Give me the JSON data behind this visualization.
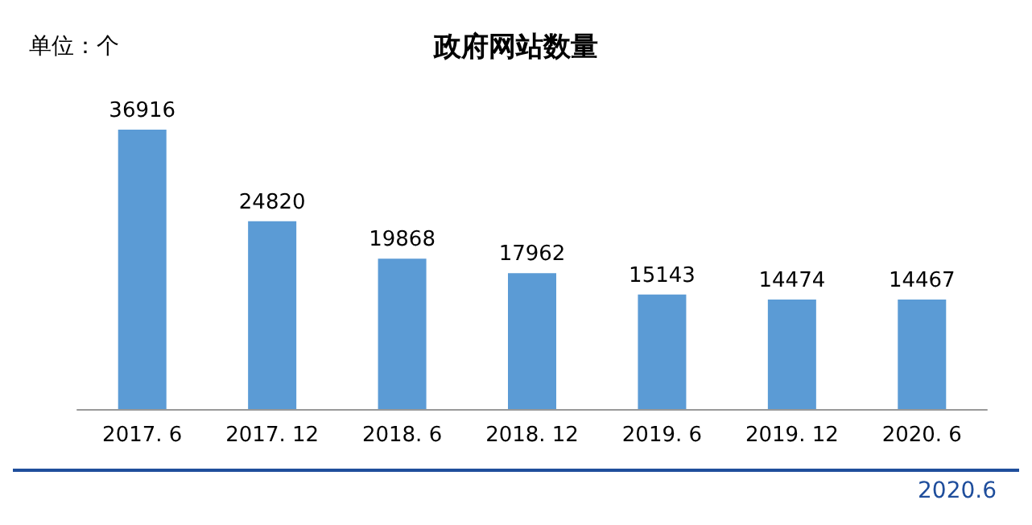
{
  "chart_data": {
    "type": "bar",
    "title": "政府网站数量",
    "categories": [
      "2017. 6",
      "2017. 12",
      "2018. 6",
      "2018. 12",
      "2019. 6",
      "2019. 12",
      "2020. 6"
    ],
    "values": [
      36916,
      24820,
      19868,
      17962,
      15143,
      14474,
      14467
    ],
    "color": "#5b9bd5",
    "data_labels": true,
    "annotations": [
      "单位：个",
      "2020.6"
    ]
  }
}
